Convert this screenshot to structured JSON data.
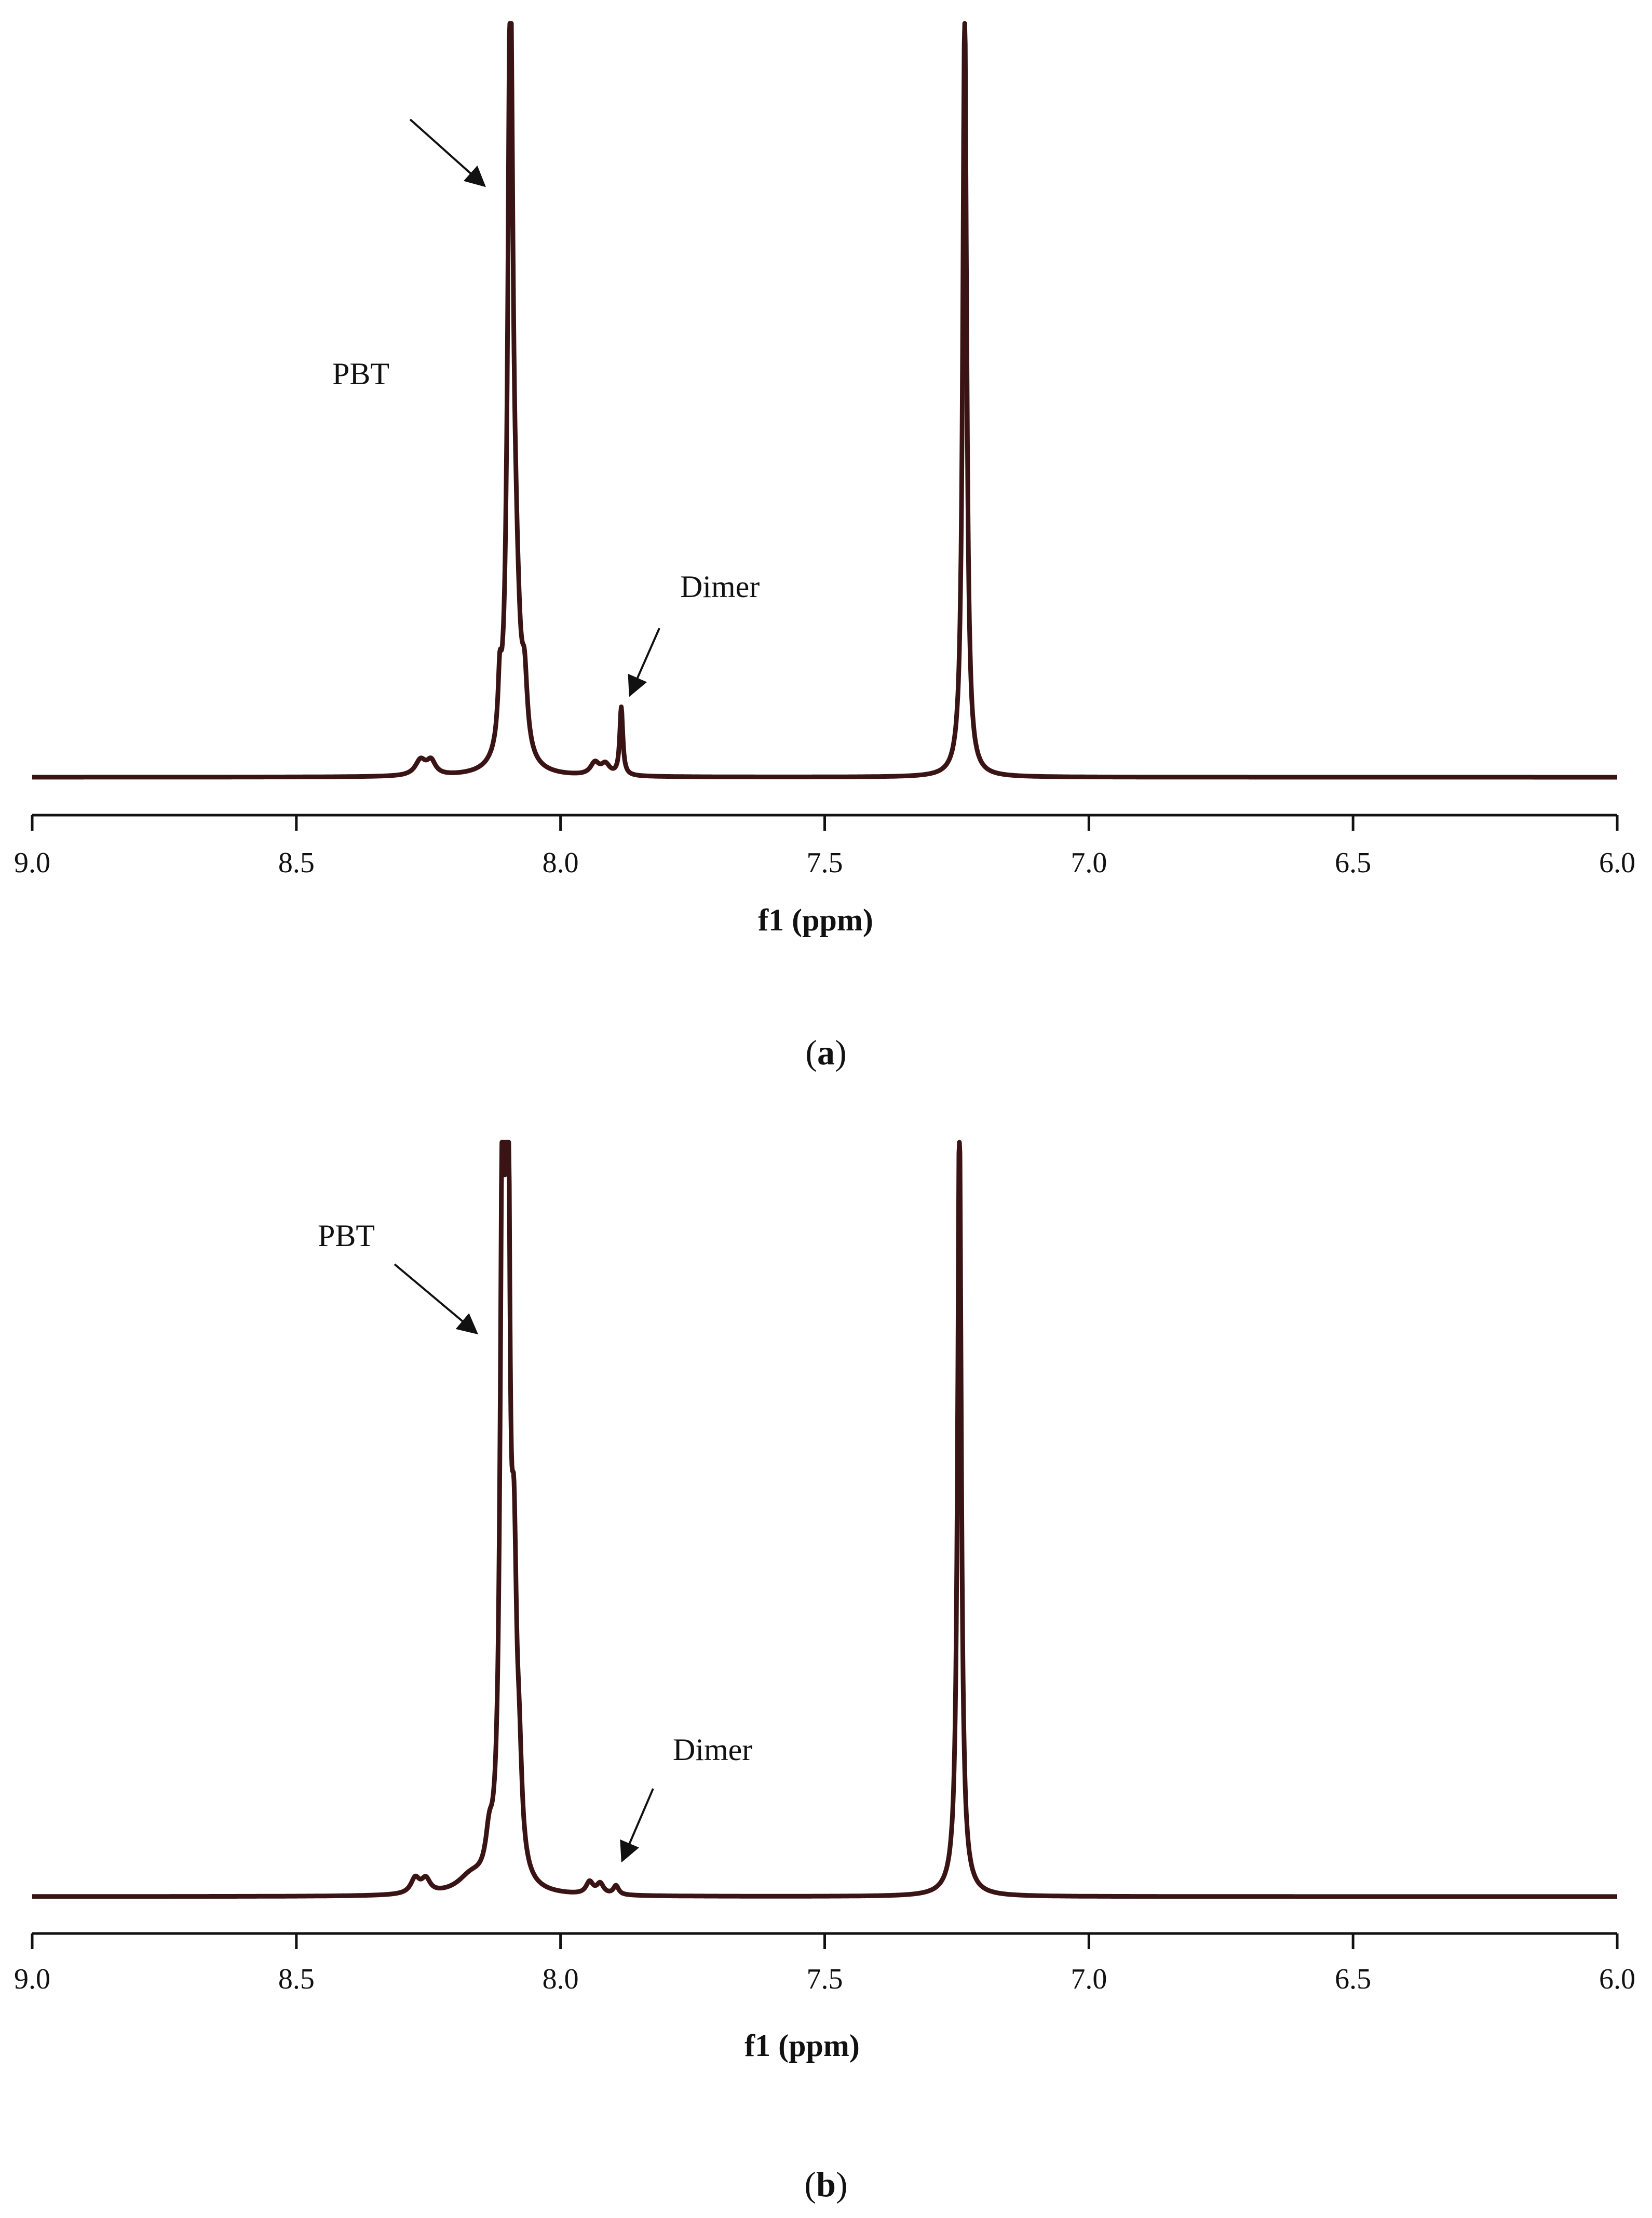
{
  "chart_data": [
    {
      "type": "line",
      "panel_label": "a",
      "xlabel": "f1 (ppm)",
      "xlim": [
        9.0,
        6.0
      ],
      "x_reversed": true,
      "ticks": [
        "9.0",
        "8.5",
        "8.0",
        "7.5",
        "7.0",
        "6.5",
        "6.0"
      ],
      "tick_values": [
        9.0,
        8.5,
        8.0,
        7.5,
        7.0,
        6.5,
        6.0
      ],
      "line_color": "#3a1414",
      "peaks": [
        {
          "ppm": 8.265,
          "height": 0.02,
          "width": 0.012
        },
        {
          "ppm": 8.245,
          "height": 0.018,
          "width": 0.01
        },
        {
          "ppm": 8.115,
          "height": 0.075,
          "width": 0.004
        },
        {
          "ppm": 8.095,
          "height": 1.02,
          "width": 0.0055
        },
        {
          "ppm": 8.085,
          "height": 0.18,
          "width": 0.01
        },
        {
          "ppm": 8.068,
          "height": 0.08,
          "width": 0.006
        },
        {
          "ppm": 7.935,
          "height": 0.016,
          "width": 0.01
        },
        {
          "ppm": 7.915,
          "height": 0.014,
          "width": 0.01
        },
        {
          "ppm": 7.885,
          "height": 0.09,
          "width": 0.0035
        },
        {
          "ppm": 7.235,
          "height": 1.02,
          "width": 0.0045
        }
      ],
      "annotations": [
        {
          "text": "PBT",
          "ppm": 8.12
        },
        {
          "text": "Dimer",
          "ppm": 7.89
        }
      ]
    },
    {
      "type": "line",
      "panel_label": "b",
      "xlabel": "f1 (ppm)",
      "xlim": [
        9.0,
        6.0
      ],
      "x_reversed": true,
      "ticks": [
        "9.0",
        "8.5",
        "8.0",
        "7.5",
        "7.0",
        "6.5",
        "6.0"
      ],
      "tick_values": [
        9.0,
        8.5,
        8.0,
        7.5,
        7.0,
        6.5,
        6.0
      ],
      "line_color": "#3a1414",
      "peaks": [
        {
          "ppm": 8.275,
          "height": 0.02,
          "width": 0.01
        },
        {
          "ppm": 8.255,
          "height": 0.018,
          "width": 0.01
        },
        {
          "ppm": 8.17,
          "height": 0.02,
          "width": 0.03
        },
        {
          "ppm": 8.135,
          "height": 0.045,
          "width": 0.008
        },
        {
          "ppm": 8.11,
          "height": 0.9,
          "width": 0.005
        },
        {
          "ppm": 8.1,
          "height": 1.02,
          "width": 0.0045
        },
        {
          "ppm": 8.088,
          "height": 0.35,
          "width": 0.006
        },
        {
          "ppm": 8.078,
          "height": 0.1,
          "width": 0.006
        },
        {
          "ppm": 7.945,
          "height": 0.016,
          "width": 0.008
        },
        {
          "ppm": 7.925,
          "height": 0.014,
          "width": 0.008
        },
        {
          "ppm": 7.895,
          "height": 0.012,
          "width": 0.006
        },
        {
          "ppm": 7.245,
          "height": 1.02,
          "width": 0.0042
        },
        {
          "ppm": 7.245,
          "height": 0.02,
          "width": 0.02
        }
      ],
      "annotations": [
        {
          "text": "PBT",
          "ppm": 8.12
        },
        {
          "text": "Dimer",
          "ppm": 7.89
        }
      ]
    }
  ]
}
